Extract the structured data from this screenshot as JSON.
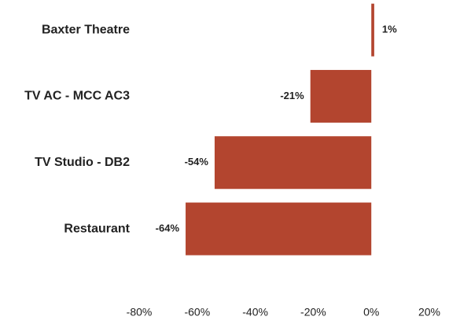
{
  "chart_data": {
    "type": "bar",
    "orientation": "horizontal",
    "categories": [
      "Baxter Theatre",
      "TV AC - MCC AC3",
      "TV Studio - DB2",
      "Restaurant"
    ],
    "values": [
      1,
      -21,
      -54,
      -64
    ],
    "value_labels": [
      "1%",
      "-21%",
      "-54%",
      "-64%"
    ],
    "color": "#b3452f",
    "xlim": [
      -80,
      20
    ],
    "xticks": [
      {
        "value": -80,
        "label": "-80%"
      },
      {
        "value": -60,
        "label": "-60%"
      },
      {
        "value": -40,
        "label": "-40%"
      },
      {
        "value": -20,
        "label": "-20%"
      },
      {
        "value": 0,
        "label": "0%"
      },
      {
        "value": 20,
        "label": "20%"
      }
    ],
    "grid": false
  }
}
